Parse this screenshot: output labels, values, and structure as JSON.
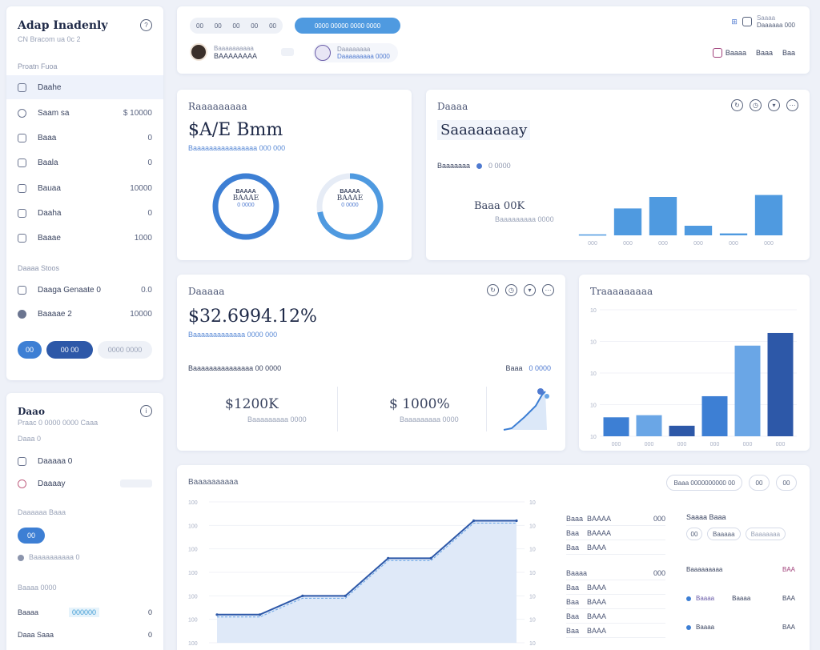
{
  "sidebar": {
    "brand": "Adap Inadenly",
    "brand_sub": "CN Bracom ua 0c 2",
    "section1": "Proatn Fuoa",
    "items": [
      {
        "label": "Daahe",
        "value": ""
      },
      {
        "label": "Saam sa",
        "value": "$ 10000"
      },
      {
        "label": "Baaa",
        "value": "0"
      },
      {
        "label": "Baala",
        "value": "0"
      },
      {
        "label": "Bauaa",
        "value": "10000"
      },
      {
        "label": "Daaha",
        "value": "0"
      },
      {
        "label": "Baaae",
        "value": "1000"
      }
    ],
    "section2": "Daaaa Stoos",
    "items2": [
      {
        "label": "Daaga Genaate 0",
        "value": "0.0"
      },
      {
        "label": "Baaaae 2",
        "value": "10000"
      }
    ],
    "btn1": "00",
    "btn2": "00 00",
    "btn3": "0000 0000"
  },
  "sidebar2": {
    "title": "Daao",
    "subtitle": "Praac 0 0000 0000 Caaa",
    "small": "Daaa 0",
    "items": [
      {
        "label": "Daaaaa 0"
      },
      {
        "label": "Daaaay"
      }
    ],
    "section": "Daaaaaa Baaa",
    "btn": "00",
    "link": "Baaaaaaaaaa 0",
    "section2": "Baaaa 0000",
    "row1_label": "Baaaa",
    "row1_tag": "000000",
    "row1_value": "0",
    "row2_label": "Daaa Saaa",
    "row2_value": "0"
  },
  "topbar": {
    "tabs": [
      "00",
      "00",
      "00",
      "00",
      "00"
    ],
    "search_btn": "0000 00000 0000 0000",
    "user1_name": "Baaaaaaaaaa",
    "user1_sub": "BAAAAAAAA",
    "user2_name": "Daaaaaaaa",
    "user2_sub": "Daaaaaaaaa 0000",
    "right_top": "Saaaa",
    "right_sub": "Daaaaaa 000",
    "actions": [
      "Baaaa",
      "Baaa",
      "Baa"
    ]
  },
  "revenue": {
    "title": "Raaaaaaaaa",
    "value": "$A/E Bmm",
    "sub": "Baaaaaaaaaaaaaaaa 000 000",
    "donut1_top": "BAAAA",
    "donut1_mid": "BAAAE",
    "donut1_bot": "0 0000",
    "donut2_top": "BAAAA",
    "donut2_mid": "BAAAE",
    "donut2_bot": "0 0000",
    "donut1_pct": 100,
    "donut2_pct": 72
  },
  "summary": {
    "title": "Daaaa",
    "value": "Saaaaaaaay",
    "legend_label": "Baaaaaaa",
    "legend_series": "0 0000",
    "kpi": "Baaa 00K",
    "kpi_sub": "Baaaaaaaaa 0000"
  },
  "balance": {
    "title": "Daaaaa",
    "value": "$32.6994.12%",
    "sub": "Baaaaaaaaaaaaa 0000 000",
    "footer_left": "Baaaaaaaaaaaaaaa 00 0000",
    "footer_right_label": "Baaa",
    "footer_right_tag": "0 0000",
    "stat1": "$1200K",
    "stat1_sub": "Baaaaaaaaa 0000",
    "stat2": "$ 1000%",
    "stat2_sub": "Baaaaaaaaa 0000"
  },
  "transactions": {
    "title": "Traaaaaaaaa"
  },
  "activity": {
    "title": "Baaaaaaaaaa",
    "filter": "Baaa 0000000000 00",
    "btn1": "00",
    "btn2": "00",
    "table1": [
      {
        "a": "Baaa",
        "b": "BAAAA",
        "c": "000"
      },
      {
        "a": "Baa",
        "b": "BAAAA",
        "c": ""
      },
      {
        "a": "Baa",
        "b": "BAAA",
        "c": ""
      },
      {
        "a": "Baaaa",
        "b": "",
        "c": "000"
      },
      {
        "a": "Baa",
        "b": "BAAA",
        "c": ""
      },
      {
        "a": "Baa",
        "b": "BAAA",
        "c": ""
      },
      {
        "a": "Baa",
        "b": "BAAA",
        "c": ""
      },
      {
        "a": "Baa",
        "b": "BAAA",
        "c": ""
      }
    ],
    "panel_title": "Saaaa Baaa",
    "panel_chips": [
      "00",
      "Baaaaa",
      "Baaaaaaa"
    ],
    "panel_sub": "Baaaaaaaaa",
    "panel_sub_val": "BAA",
    "panel_rows": [
      {
        "a": "Baaaa",
        "b": "Baaaa",
        "c": "BAA"
      },
      {
        "a": "Baaaa",
        "b": "",
        "c": "BAA"
      }
    ]
  },
  "chart_data": [
    {
      "type": "bar",
      "categories": [
        "",
        "",
        "",
        "",
        "",
        ""
      ],
      "values": [
        1,
        28,
        40,
        10,
        2,
        42
      ],
      "ylim": [
        0,
        50
      ]
    },
    {
      "type": "bar",
      "categories": [
        "",
        "",
        "",
        "",
        "",
        ""
      ],
      "values": [
        18,
        20,
        10,
        38,
        86,
        98
      ],
      "ylim": [
        0,
        120
      ]
    },
    {
      "type": "area",
      "x": [
        0,
        1,
        2,
        3,
        4,
        5,
        6,
        7
      ],
      "values": [
        30,
        30,
        50,
        50,
        90,
        90,
        130,
        130
      ],
      "ylim": [
        0,
        150
      ]
    }
  ],
  "colors": {
    "accent": "#3d7fd4",
    "dark": "#2d58a8",
    "light": "#6aa6e6"
  }
}
